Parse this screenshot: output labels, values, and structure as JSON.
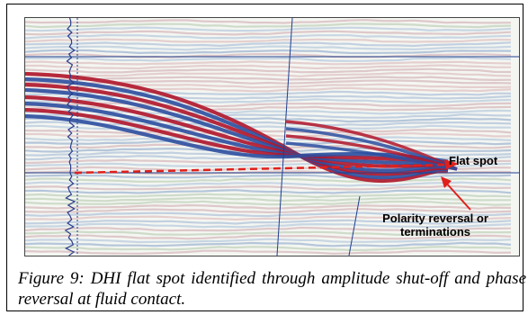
{
  "figure": {
    "annotations": {
      "flat_spot": "Flat spot",
      "polarity_line1": "Polarity reversal or",
      "polarity_line2": "terminations"
    },
    "caption": "Figure 9: DHI flat spot identified through amplitude shut-off and phase reversal at fluid contact.",
    "colors": {
      "trough": "#b0152a",
      "peak": "#2c4fa0",
      "flat_spot_marker": "#e0201c",
      "grid_line": "#1f3f8f"
    }
  }
}
